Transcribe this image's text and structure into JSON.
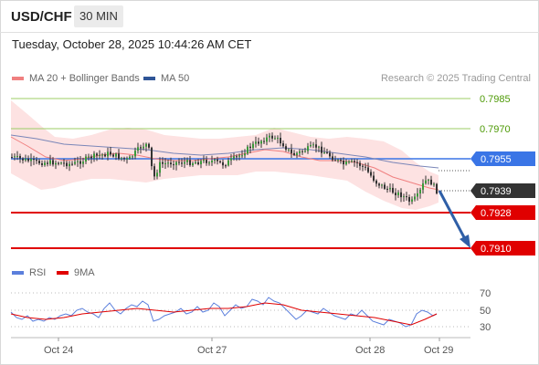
{
  "header": {
    "symbol": "USD/CHF",
    "timeframe": "30 MIN"
  },
  "datetime": "Tuesday, October 28, 2025 10:44:26 AM CET",
  "legend": {
    "ma20": "MA 20 + Bollinger Bands",
    "ma50": "MA 50",
    "credit": "Research © 2025 Trading Central",
    "ma20_color": "#f08080",
    "ma50_color": "#2f5597"
  },
  "rsi_legend": {
    "rsi": "RSI",
    "ma9": "9MA",
    "rsi_color": "#5b7fdc",
    "ma9_color": "#e00000"
  },
  "levels": [
    {
      "label": "0.7985",
      "kind": "resistance",
      "color": "#4e9a06"
    },
    {
      "label": "0.7970",
      "kind": "resistance",
      "color": "#4e9a06"
    },
    {
      "label": "0.7955",
      "kind": "pivot",
      "color": "#3a75e6"
    },
    {
      "label": "0.7939",
      "kind": "last",
      "color": "#333333"
    },
    {
      "label": "0.7928",
      "kind": "support",
      "color": "#e00000"
    },
    {
      "label": "0.7910",
      "kind": "support",
      "color": "#e00000"
    }
  ],
  "rsi_ticks": [
    "70",
    "50",
    "30"
  ],
  "x_labels": [
    "Oct 24",
    "Oct 27",
    "Oct 28",
    "Oct 29"
  ]
}
